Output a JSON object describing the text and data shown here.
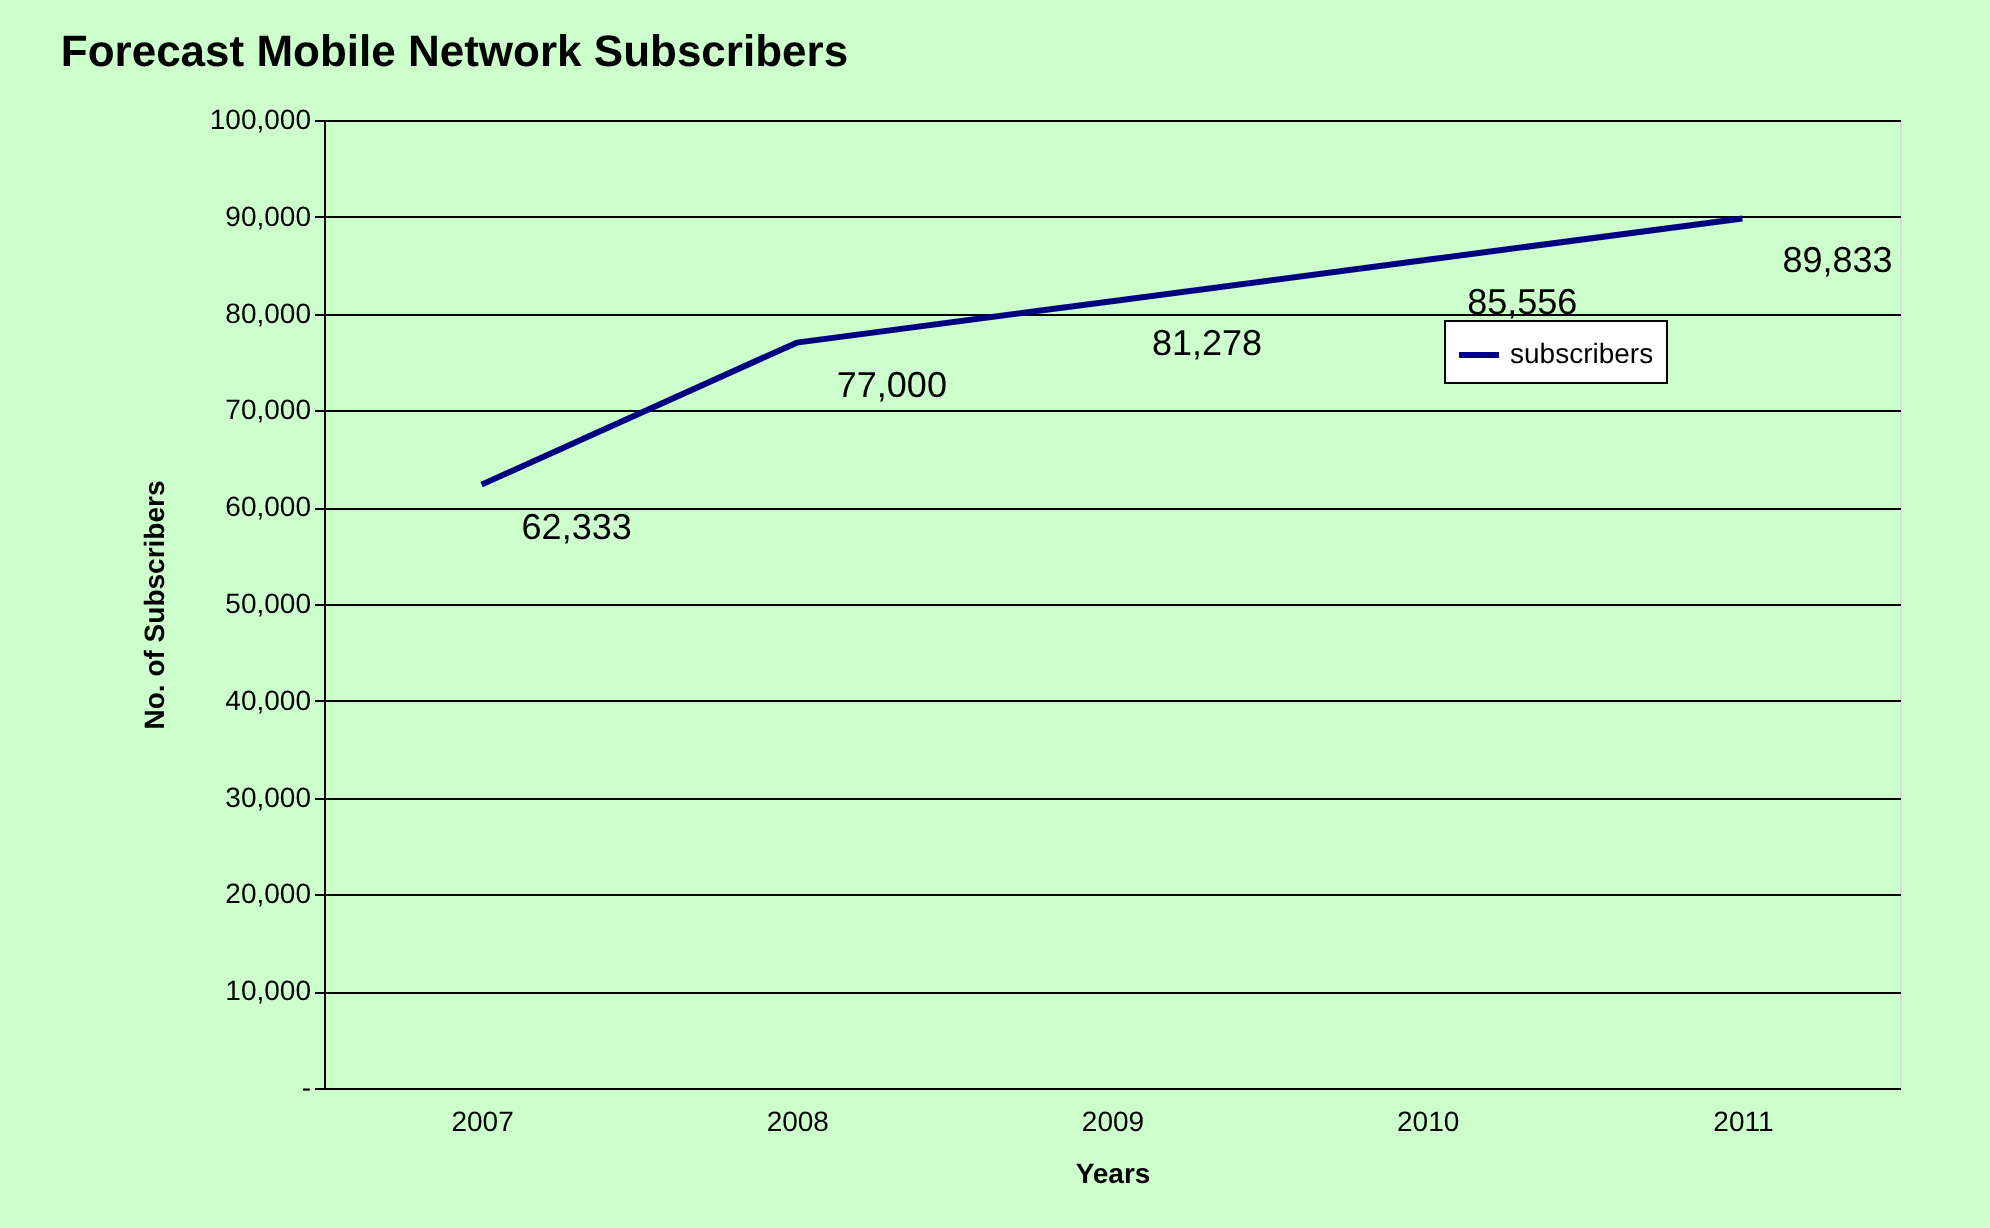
{
  "chart_data": {
    "type": "line",
    "title": "Forecast Mobile Network Subscribers",
    "xlabel": "Years",
    "ylabel": "No. of Subscribers",
    "categories": [
      "2007",
      "2008",
      "2009",
      "2010",
      "2011"
    ],
    "series": [
      {
        "name": "subscribers",
        "color": "#000080",
        "values": [
          62333,
          77000,
          81278,
          85556,
          89833
        ],
        "value_labels": [
          "62,333",
          "77,000",
          "81,278",
          "85,556",
          "89,833"
        ]
      }
    ],
    "ylim": [
      0,
      100000
    ],
    "yticks": [
      {
        "value": 0,
        "label": "-"
      },
      {
        "value": 10000,
        "label": "10,000"
      },
      {
        "value": 20000,
        "label": "20,000"
      },
      {
        "value": 30000,
        "label": "30,000"
      },
      {
        "value": 40000,
        "label": "40,000"
      },
      {
        "value": 50000,
        "label": "50,000"
      },
      {
        "value": 60000,
        "label": "60,000"
      },
      {
        "value": 70000,
        "label": "70,000"
      },
      {
        "value": 80000,
        "label": "80,000"
      },
      {
        "value": 90000,
        "label": "90,000"
      },
      {
        "value": 100000,
        "label": "100,000"
      }
    ],
    "grid": "y",
    "legend": "right",
    "marker": "none",
    "line_style": "solid"
  }
}
